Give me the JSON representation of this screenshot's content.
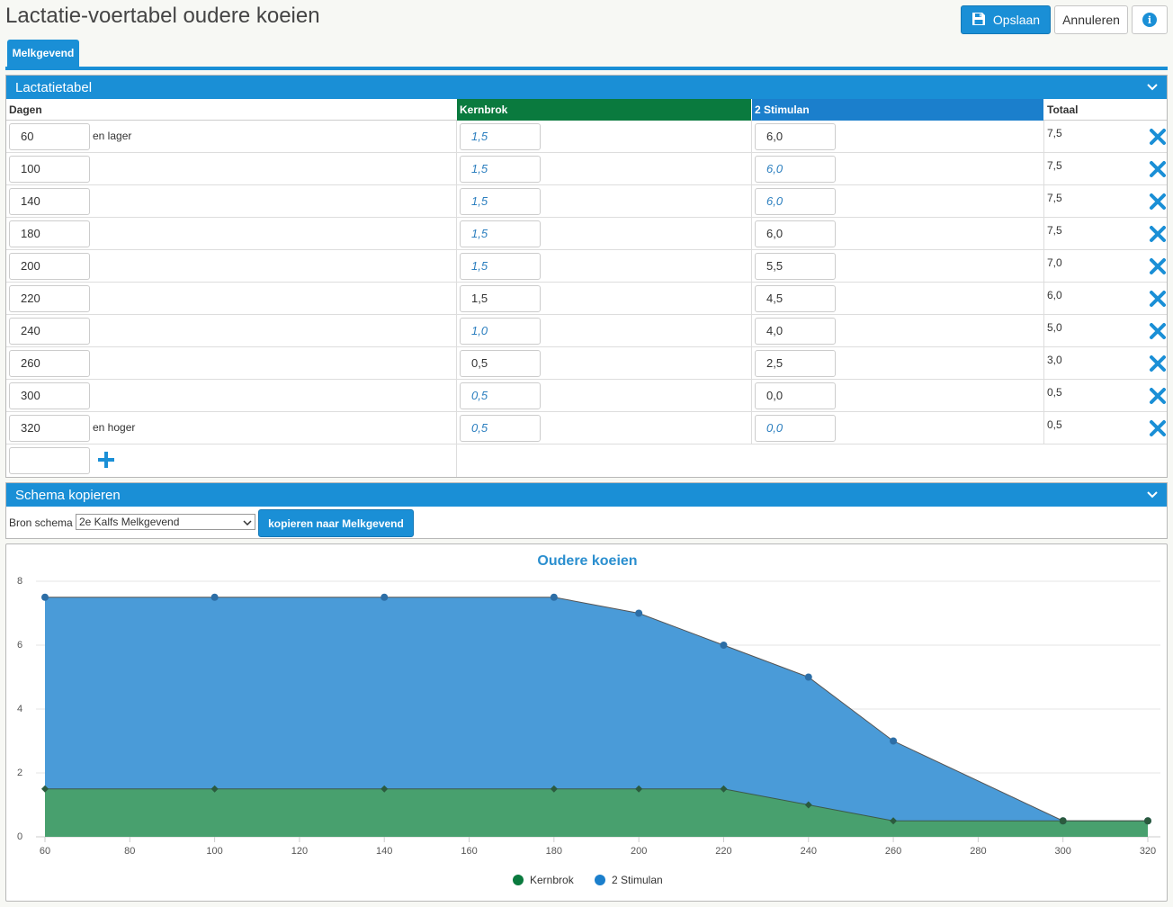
{
  "page": {
    "title": "Lactatie-voertabel oudere koeien",
    "save_label": "Opslaan",
    "cancel_label": "Annuleren",
    "info_glyph": "i"
  },
  "tabs": [
    {
      "label": "Melkgevend",
      "active": true
    }
  ],
  "lactatie": {
    "title": "Lactatietabel",
    "headers": {
      "dagen": "Dagen",
      "kernbrok": "Kernbrok",
      "stimulan": "2 Stimulan",
      "totaal": "Totaal"
    },
    "rows": [
      {
        "dagen": "60",
        "suffix": "en lager",
        "kern": "1,5",
        "kern_derived": true,
        "stim": "6,0",
        "stim_derived": false,
        "totaal": "7,5"
      },
      {
        "dagen": "100",
        "suffix": "",
        "kern": "1,5",
        "kern_derived": true,
        "stim": "6,0",
        "stim_derived": true,
        "totaal": "7,5"
      },
      {
        "dagen": "140",
        "suffix": "",
        "kern": "1,5",
        "kern_derived": true,
        "stim": "6,0",
        "stim_derived": true,
        "totaal": "7,5"
      },
      {
        "dagen": "180",
        "suffix": "",
        "kern": "1,5",
        "kern_derived": true,
        "stim": "6,0",
        "stim_derived": false,
        "totaal": "7,5"
      },
      {
        "dagen": "200",
        "suffix": "",
        "kern": "1,5",
        "kern_derived": true,
        "stim": "5,5",
        "stim_derived": false,
        "totaal": "7,0"
      },
      {
        "dagen": "220",
        "suffix": "",
        "kern": "1,5",
        "kern_derived": false,
        "stim": "4,5",
        "stim_derived": false,
        "totaal": "6,0"
      },
      {
        "dagen": "240",
        "suffix": "",
        "kern": "1,0",
        "kern_derived": true,
        "stim": "4,0",
        "stim_derived": false,
        "totaal": "5,0"
      },
      {
        "dagen": "260",
        "suffix": "",
        "kern": "0,5",
        "kern_derived": false,
        "stim": "2,5",
        "stim_derived": false,
        "totaal": "3,0"
      },
      {
        "dagen": "300",
        "suffix": "",
        "kern": "0,5",
        "kern_derived": true,
        "stim": "0,0",
        "stim_derived": false,
        "totaal": "0,5"
      },
      {
        "dagen": "320",
        "suffix": "en hoger",
        "kern": "0,5",
        "kern_derived": true,
        "stim": "0,0",
        "stim_derived": true,
        "totaal": "0,5"
      }
    ],
    "new_dagen_value": ""
  },
  "schema": {
    "title": "Schema kopieren",
    "bron_label": "Bron schema",
    "bron_selected": "2e Kalfs Melkgevend",
    "copy_label": "kopieren naar Melkgevend"
  },
  "colors": {
    "accent": "#1a8fd6",
    "kernbrok": "#0a7a3e",
    "stimulan": "#1b7fcc",
    "derived_text": "#2c7fbf"
  },
  "chart_data": {
    "type": "area",
    "stacked": true,
    "title": "Oudere koeien",
    "x": [
      60,
      100,
      140,
      180,
      200,
      220,
      240,
      260,
      300,
      320
    ],
    "series": [
      {
        "name": "Kernbrok",
        "values": [
          1.5,
          1.5,
          1.5,
          1.5,
          1.5,
          1.5,
          1.0,
          0.5,
          0.5,
          0.5
        ],
        "color": "#2a8a55"
      },
      {
        "name": "2 Stimulan",
        "values": [
          6.0,
          6.0,
          6.0,
          6.0,
          5.5,
          4.5,
          4.0,
          2.5,
          0.0,
          0.0
        ],
        "color": "#3a8fd6"
      }
    ],
    "xlim": [
      60,
      320
    ],
    "ylim": [
      0,
      8
    ],
    "xticks": [
      60,
      80,
      100,
      120,
      140,
      160,
      180,
      200,
      220,
      240,
      260,
      280,
      300,
      320
    ],
    "yticks": [
      0,
      2,
      4,
      6,
      8
    ],
    "grid": true,
    "legend": "bottom-center"
  }
}
